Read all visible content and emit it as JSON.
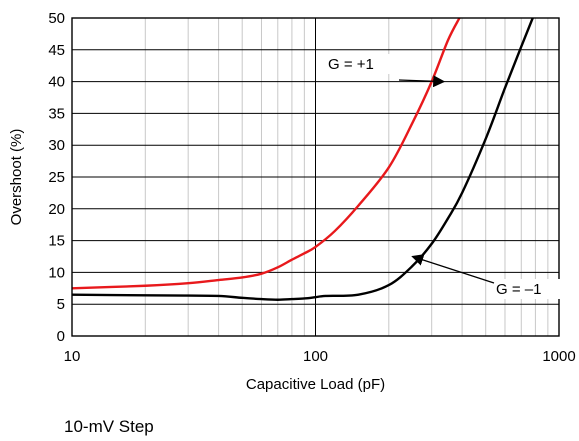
{
  "chart_data": {
    "type": "line",
    "xlabel": "Capacitive Load (pF)",
    "ylabel": "Overshoot (%)",
    "xscale": "log",
    "xlim": [
      10,
      1000
    ],
    "ylim": [
      0,
      50
    ],
    "x_ticks": [
      "10",
      "100",
      "1000"
    ],
    "y_ticks": [
      "0",
      "5",
      "10",
      "15",
      "20",
      "25",
      "30",
      "35",
      "40",
      "45",
      "50"
    ],
    "grid": true,
    "series": [
      {
        "name": "G = +1",
        "color": "#e8191c",
        "x": [
          10,
          20,
          30,
          40,
          50,
          60,
          70,
          80,
          90,
          100,
          120,
          150,
          200,
          250,
          300,
          350,
          390
        ],
        "y": [
          7.5,
          7.9,
          8.3,
          8.8,
          9.2,
          9.8,
          10.8,
          12.0,
          13.0,
          14.0,
          16.5,
          20.5,
          26.5,
          33.5,
          40.0,
          46.5,
          50.0
        ]
      },
      {
        "name": "G = –1",
        "color": "#000000",
        "x": [
          10,
          20,
          30,
          40,
          50,
          60,
          70,
          80,
          90,
          100,
          110,
          150,
          200,
          250,
          300,
          350,
          400,
          500,
          600,
          700,
          780
        ],
        "y": [
          6.5,
          6.4,
          6.35,
          6.3,
          6.0,
          5.8,
          5.7,
          5.8,
          5.9,
          6.1,
          6.3,
          6.5,
          8.0,
          11.0,
          14.5,
          18.5,
          22.5,
          31.0,
          39.0,
          45.5,
          50.0
        ]
      }
    ],
    "annotations": [
      {
        "text": "G = +1",
        "series": 0,
        "arrow_to": [
          337,
          40.0
        ]
      },
      {
        "text": "G = –1",
        "series": 1,
        "arrow_to": [
          250,
          12.5
        ]
      }
    ]
  },
  "footer_note": "10-mV Step"
}
